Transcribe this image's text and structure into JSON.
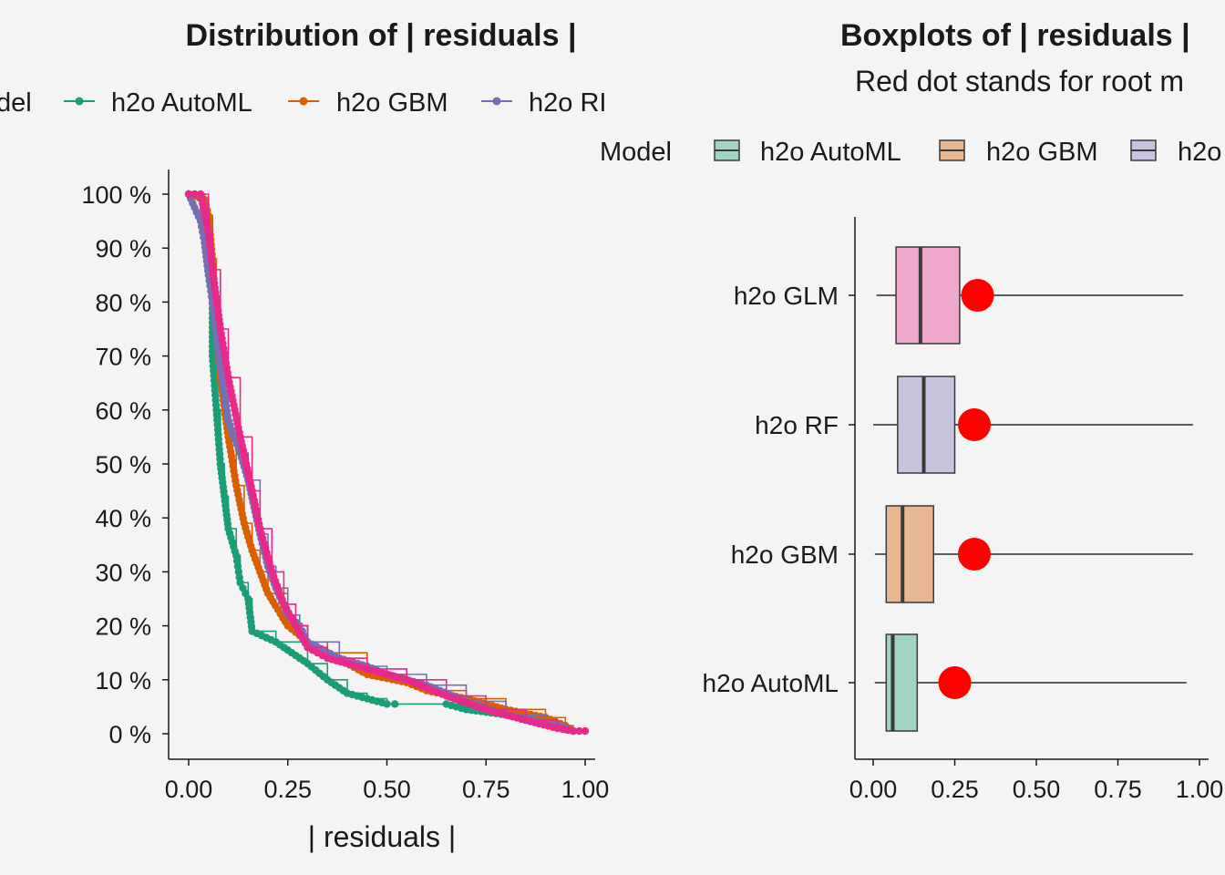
{
  "chart_data": [
    {
      "type": "line",
      "title": "Distribution of | residuals |",
      "xlabel": "| residuals |",
      "ylabel": "",
      "xlim": [
        0.0,
        1.0
      ],
      "ylim": [
        0,
        100
      ],
      "grid": false,
      "legend_position": "top",
      "legend_title": "Model",
      "legend_title_visible": "del",
      "legend": [
        "h2o AutoML",
        "h2o GBM",
        "h2o RI"
      ],
      "x_ticks": [
        "0.00",
        "0.25",
        "0.50",
        "0.75",
        "1.00"
      ],
      "x_tick_values": [
        0.0,
        0.25,
        0.5,
        0.75,
        1.0
      ],
      "y_ticks": [
        "0 %",
        "10 %",
        "20 %",
        "30 %",
        "40 %",
        "50 %",
        "60 %",
        "70 %",
        "80 %",
        "90 %",
        "100 %"
      ],
      "y_tick_values": [
        0,
        10,
        20,
        30,
        40,
        50,
        60,
        70,
        80,
        90,
        100
      ],
      "series": [
        {
          "name": "h2o AutoML",
          "color": "#1b9e77",
          "x": [
            0.0,
            0.04,
            0.05,
            0.06,
            0.06,
            0.07,
            0.08,
            0.09,
            0.1,
            0.12,
            0.13,
            0.15,
            0.16,
            0.22,
            0.3,
            0.35,
            0.4,
            0.45,
            0.5,
            0.52,
            0.65,
            0.7,
            0.8,
            0.9,
            0.95,
            0.97
          ],
          "y": [
            100,
            99,
            96,
            85,
            70,
            60,
            50,
            44,
            38,
            33,
            28,
            25,
            19,
            17,
            13,
            10,
            7.5,
            6.5,
            5.5,
            5.5,
            5.5,
            4.5,
            3.5,
            2,
            0.8,
            0.5
          ]
        },
        {
          "name": "h2o GBM",
          "color": "#d95f02",
          "x": [
            0.0,
            0.04,
            0.05,
            0.06,
            0.07,
            0.08,
            0.1,
            0.12,
            0.14,
            0.16,
            0.18,
            0.2,
            0.25,
            0.3,
            0.35,
            0.45,
            0.55,
            0.6,
            0.7,
            0.8,
            0.9,
            0.95,
            0.97
          ],
          "y": [
            100,
            99,
            96,
            88,
            75,
            66,
            55,
            46,
            39,
            34,
            30,
            26,
            20,
            17,
            15,
            11,
            9.5,
            8,
            6.5,
            4.5,
            3,
            1.5,
            0.5
          ]
        },
        {
          "name": "h2o RI",
          "color": "#7570b3",
          "x": [
            0.0,
            0.03,
            0.04,
            0.05,
            0.06,
            0.08,
            0.1,
            0.13,
            0.15,
            0.18,
            0.2,
            0.22,
            0.25,
            0.28,
            0.3,
            0.38,
            0.45,
            0.5,
            0.6,
            0.7,
            0.8,
            0.9,
            0.95,
            0.97
          ],
          "y": [
            100,
            95,
            91,
            85,
            80,
            68,
            58,
            52,
            47,
            37,
            31,
            27,
            22,
            20,
            17,
            14,
            12.5,
            11,
            9,
            6,
            3.5,
            2,
            1,
            0.5
          ]
        },
        {
          "name": "h2o GLM",
          "color": "#e7298a",
          "x": [
            0.0,
            0.03,
            0.05,
            0.06,
            0.08,
            0.1,
            0.13,
            0.16,
            0.18,
            0.21,
            0.24,
            0.27,
            0.3,
            0.35,
            0.45,
            0.55,
            0.65,
            0.75,
            0.85,
            0.93,
            0.97,
            1.0
          ],
          "y": [
            100,
            100,
            93,
            86,
            75,
            66,
            55,
            45,
            38,
            30,
            24,
            20,
            16,
            14,
            12,
            10,
            7,
            4.5,
            2.5,
            1,
            0.5,
            0.5
          ]
        }
      ]
    },
    {
      "type": "boxplot",
      "title": "Boxplots of | residuals |",
      "subtitle": "Red dot stands for root m",
      "xlim": [
        0.0,
        1.0
      ],
      "grid": false,
      "legend_position": "top",
      "legend_title": "Model",
      "legend": [
        "h2o AutoML",
        "h2o GBM",
        "h2o"
      ],
      "x_ticks": [
        "0.00",
        "0.25",
        "0.50",
        "0.75",
        "1.00"
      ],
      "x_tick_values": [
        0.0,
        0.25,
        0.5,
        0.75,
        1.0
      ],
      "categories": [
        "h2o GLM",
        "h2o RF",
        "h2o GBM",
        "h2o AutoML"
      ],
      "boxes": [
        {
          "name": "h2o GLM",
          "color": "#efa7cc",
          "min": 0.01,
          "q1": 0.07,
          "median": 0.145,
          "q3": 0.265,
          "max": 0.95,
          "rmse": 0.32
        },
        {
          "name": "h2o RF",
          "color": "#c7c4df",
          "min": 0.0,
          "q1": 0.075,
          "median": 0.155,
          "q3": 0.25,
          "max": 0.98,
          "rmse": 0.31
        },
        {
          "name": "h2o GBM",
          "color": "#e9b893",
          "min": 0.005,
          "q1": 0.04,
          "median": 0.09,
          "q3": 0.185,
          "max": 0.98,
          "rmse": 0.31
        },
        {
          "name": "h2o AutoML",
          "color": "#a2d4c3",
          "min": 0.005,
          "q1": 0.04,
          "median": 0.06,
          "q3": 0.135,
          "max": 0.96,
          "rmse": 0.25
        }
      ]
    }
  ]
}
